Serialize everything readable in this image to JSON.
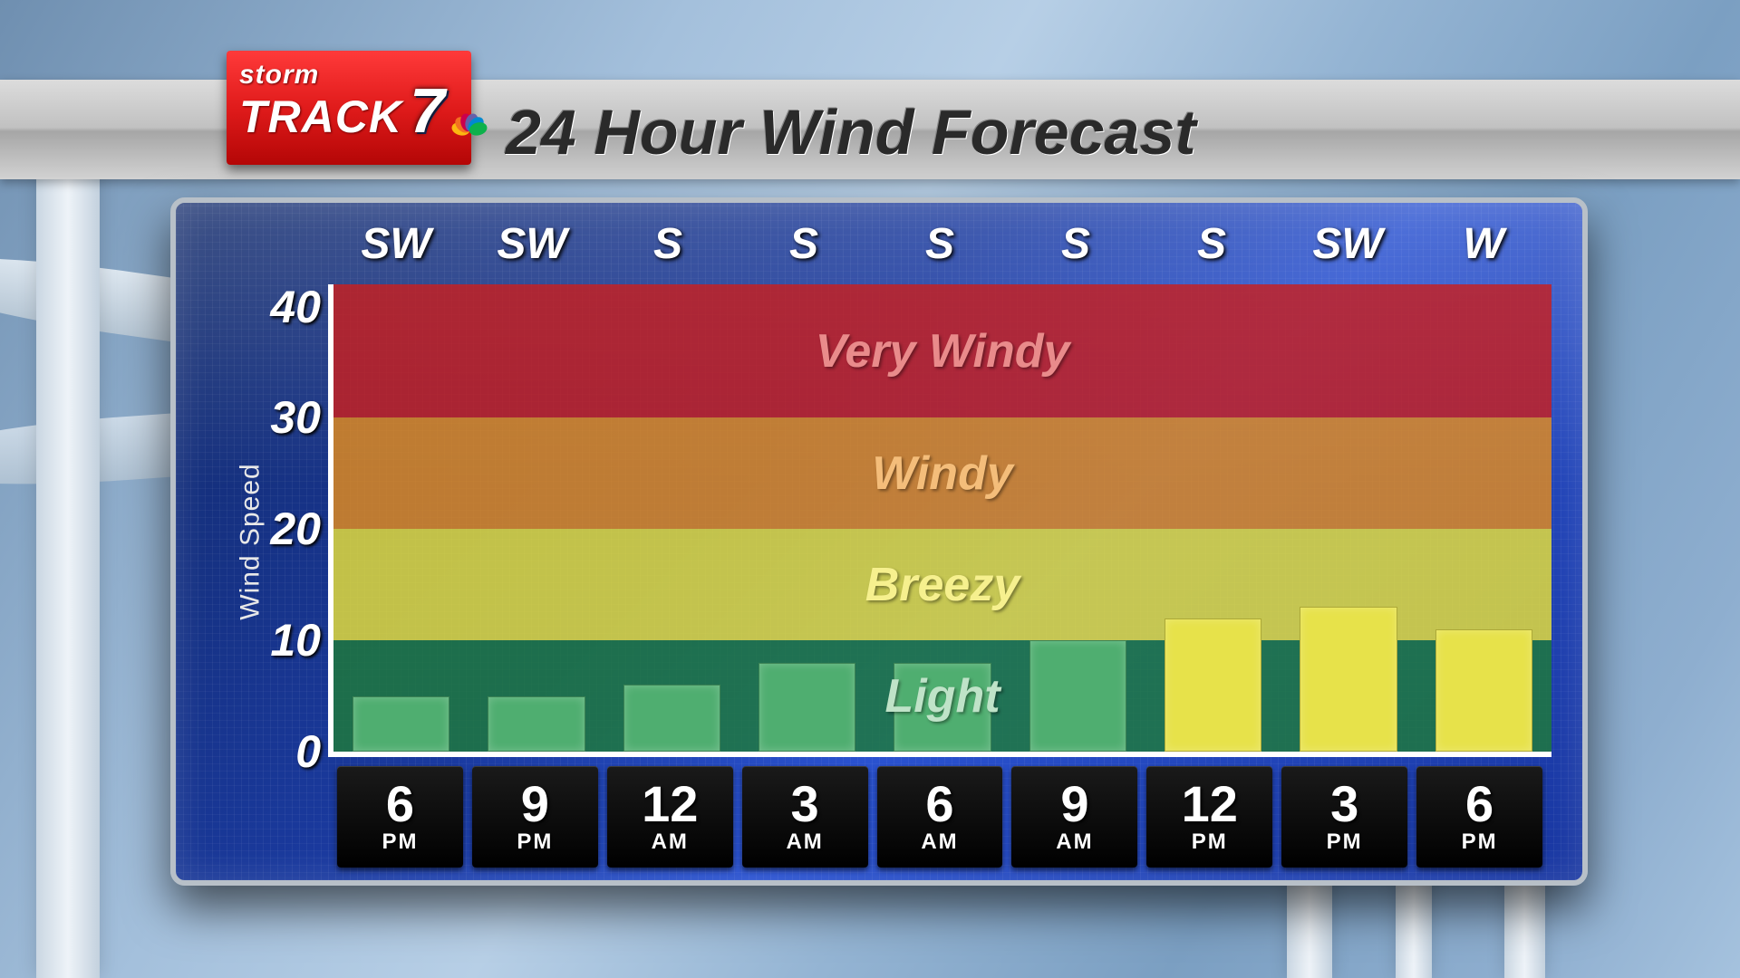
{
  "logo": {
    "line1": "storm",
    "line2": "TRACK",
    "seven": "7"
  },
  "header_title": "24 Hour Wind Forecast",
  "chart": {
    "type": "bar",
    "ylabel": "Wind Speed",
    "ylim": [
      0,
      42
    ],
    "yticks": [
      0,
      10,
      20,
      30,
      40
    ],
    "bands": [
      {
        "label": "Light",
        "from": 0,
        "to": 10,
        "bg": "#1f7a3a",
        "text_color": "#bfe3c8"
      },
      {
        "label": "Breezy",
        "from": 10,
        "to": 20,
        "bg": "#e8e139",
        "text_color": "#f6f08e"
      },
      {
        "label": "Windy",
        "from": 20,
        "to": 30,
        "bg": "#e38b1f",
        "text_color": "#f4bd7a"
      },
      {
        "label": "Very Windy",
        "from": 30,
        "to": 42,
        "bg": "#c81e1e",
        "text_color": "#e98b8b"
      }
    ],
    "points": [
      {
        "hour": "6",
        "ampm": "PM",
        "dir": "SW",
        "value": 5
      },
      {
        "hour": "9",
        "ampm": "PM",
        "dir": "SW",
        "value": 5
      },
      {
        "hour": "12",
        "ampm": "AM",
        "dir": "S",
        "value": 6
      },
      {
        "hour": "3",
        "ampm": "AM",
        "dir": "S",
        "value": 8
      },
      {
        "hour": "6",
        "ampm": "AM",
        "dir": "S",
        "value": 8
      },
      {
        "hour": "9",
        "ampm": "AM",
        "dir": "S",
        "value": 10
      },
      {
        "hour": "12",
        "ampm": "PM",
        "dir": "S",
        "value": 12
      },
      {
        "hour": "3",
        "ampm": "PM",
        "dir": "SW",
        "value": 13
      },
      {
        "hour": "6",
        "ampm": "PM",
        "dir": "W",
        "value": 11
      }
    ],
    "bar_colors": {
      "light": "#4fae70",
      "breezy": "#e7e24a"
    },
    "band_label_fontsize": 52,
    "ytick_fontsize": 50,
    "dir_fontsize": 48,
    "hour_fontsize": 56,
    "ampm_fontsize": 24,
    "panel_bg_stops": [
      "#122a6a",
      "#1a3aa0",
      "#2a52d0",
      "#1836a0"
    ],
    "panel_border_color": "#b8c0c8",
    "axis_color": "#ffffff"
  },
  "peacock_colors": [
    "#fcb711",
    "#f37021",
    "#cc004c",
    "#6460aa",
    "#0089d0",
    "#0db14b"
  ]
}
